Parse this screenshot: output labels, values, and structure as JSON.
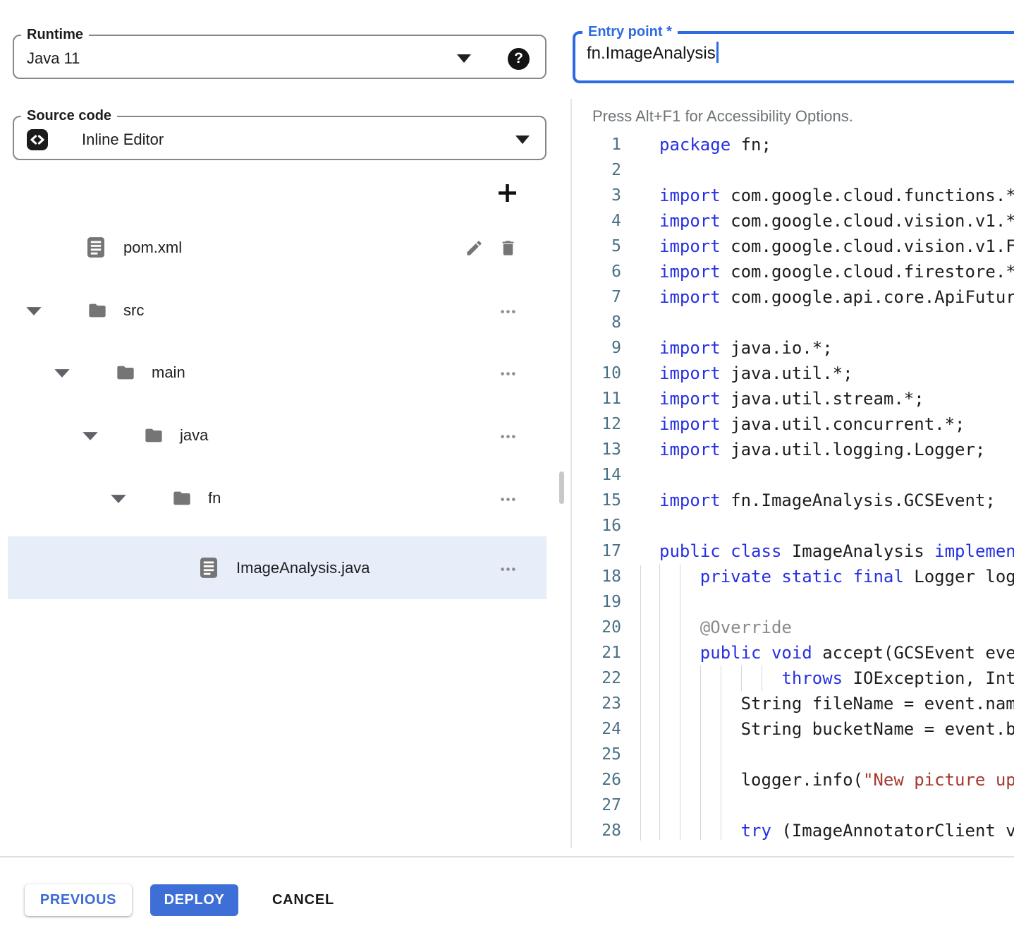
{
  "runtime_field": {
    "label": "Runtime",
    "value": "Java 11",
    "help_glyph": "?"
  },
  "source_field": {
    "label": "Source code",
    "value": "Inline Editor"
  },
  "entry_field": {
    "label": "Entry point *",
    "value": "fn.ImageAnalysis"
  },
  "file_tree": {
    "rows": [
      {
        "label": "pom.xml",
        "kind": "file",
        "level": 0,
        "caret": false,
        "selected": false,
        "actions": [
          "edit",
          "delete"
        ]
      },
      {
        "label": "src",
        "kind": "folder",
        "level": 0,
        "caret": true,
        "selected": false,
        "actions": [
          "more"
        ]
      },
      {
        "label": "main",
        "kind": "folder",
        "level": 1,
        "caret": true,
        "selected": false,
        "actions": [
          "more"
        ]
      },
      {
        "label": "java",
        "kind": "folder",
        "level": 2,
        "caret": true,
        "selected": false,
        "actions": [
          "more"
        ]
      },
      {
        "label": "fn",
        "kind": "folder",
        "level": 3,
        "caret": true,
        "selected": false,
        "actions": [
          "more"
        ]
      },
      {
        "label": "ImageAnalysis.java",
        "kind": "file",
        "level": 4,
        "caret": false,
        "selected": true,
        "actions": [
          "more"
        ]
      }
    ]
  },
  "editor": {
    "accessibility_hint": "Press Alt+F1 for Accessibility Options.",
    "lines": [
      {
        "n": 1,
        "ind": 0,
        "g": [],
        "t": [
          [
            "k",
            "package"
          ],
          [
            "p",
            " fn;"
          ]
        ]
      },
      {
        "n": 2,
        "ind": 0,
        "g": [],
        "t": []
      },
      {
        "n": 3,
        "ind": 0,
        "g": [],
        "t": [
          [
            "k",
            "import"
          ],
          [
            "p",
            " com.google.cloud.functions.*"
          ]
        ]
      },
      {
        "n": 4,
        "ind": 0,
        "g": [],
        "t": [
          [
            "k",
            "import"
          ],
          [
            "p",
            " com.google.cloud.vision.v1.*"
          ]
        ]
      },
      {
        "n": 5,
        "ind": 0,
        "g": [],
        "t": [
          [
            "k",
            "import"
          ],
          [
            "p",
            " com.google.cloud.vision.v1.F"
          ]
        ]
      },
      {
        "n": 6,
        "ind": 0,
        "g": [],
        "t": [
          [
            "k",
            "import"
          ],
          [
            "p",
            " com.google.cloud.firestore.*"
          ]
        ]
      },
      {
        "n": 7,
        "ind": 0,
        "g": [],
        "t": [
          [
            "k",
            "import"
          ],
          [
            "p",
            " com.google.api.core.ApiFutur"
          ]
        ]
      },
      {
        "n": 8,
        "ind": 0,
        "g": [],
        "t": []
      },
      {
        "n": 9,
        "ind": 0,
        "g": [],
        "t": [
          [
            "k",
            "import"
          ],
          [
            "p",
            " java.io.*;"
          ]
        ]
      },
      {
        "n": 10,
        "ind": 0,
        "g": [],
        "t": [
          [
            "k",
            "import"
          ],
          [
            "p",
            " java.util.*;"
          ]
        ]
      },
      {
        "n": 11,
        "ind": 0,
        "g": [],
        "t": [
          [
            "k",
            "import"
          ],
          [
            "p",
            " java.util.stream.*;"
          ]
        ]
      },
      {
        "n": 12,
        "ind": 0,
        "g": [],
        "t": [
          [
            "k",
            "import"
          ],
          [
            "p",
            " java.util.concurrent.*;"
          ]
        ]
      },
      {
        "n": 13,
        "ind": 0,
        "g": [],
        "t": [
          [
            "k",
            "import"
          ],
          [
            "p",
            " java.util.logging.Logger;"
          ]
        ]
      },
      {
        "n": 14,
        "ind": 0,
        "g": [],
        "t": []
      },
      {
        "n": 15,
        "ind": 0,
        "g": [],
        "t": [
          [
            "k",
            "import"
          ],
          [
            "p",
            " fn.ImageAnalysis.GCSEvent;"
          ]
        ]
      },
      {
        "n": 16,
        "ind": 0,
        "g": [],
        "t": []
      },
      {
        "n": 17,
        "ind": 0,
        "g": [],
        "t": [
          [
            "k",
            "public"
          ],
          [
            "p",
            " "
          ],
          [
            "k",
            "class"
          ],
          [
            "p",
            " ImageAnalysis "
          ],
          [
            "k",
            "implemen"
          ]
        ]
      },
      {
        "n": 18,
        "ind": 4,
        "g": [
          0,
          2
        ],
        "t": [
          [
            "k",
            "private"
          ],
          [
            "p",
            " "
          ],
          [
            "k",
            "static"
          ],
          [
            "p",
            " "
          ],
          [
            "k",
            "final"
          ],
          [
            "p",
            " Logger log"
          ]
        ]
      },
      {
        "n": 19,
        "ind": 0,
        "g": [
          0,
          2
        ],
        "t": []
      },
      {
        "n": 20,
        "ind": 4,
        "g": [
          0,
          2
        ],
        "t": [
          [
            "a",
            "@Override"
          ]
        ]
      },
      {
        "n": 21,
        "ind": 4,
        "g": [
          0,
          2
        ],
        "t": [
          [
            "k",
            "public"
          ],
          [
            "p",
            " "
          ],
          [
            "k",
            "void"
          ],
          [
            "p",
            " accept(GCSEvent eve"
          ]
        ]
      },
      {
        "n": 22,
        "ind": 12,
        "g": [
          0,
          2,
          4,
          6,
          8,
          10
        ],
        "t": [
          [
            "k",
            "throws"
          ],
          [
            "p",
            " IOException, Int"
          ]
        ]
      },
      {
        "n": 23,
        "ind": 8,
        "g": [
          0,
          2,
          4,
          6
        ],
        "t": [
          [
            "p",
            "String fileName = event.nam"
          ]
        ]
      },
      {
        "n": 24,
        "ind": 8,
        "g": [
          0,
          2,
          4,
          6
        ],
        "t": [
          [
            "p",
            "String bucketName = event.b"
          ]
        ]
      },
      {
        "n": 25,
        "ind": 0,
        "g": [
          0,
          2,
          4,
          6
        ],
        "t": []
      },
      {
        "n": 26,
        "ind": 8,
        "g": [
          0,
          2,
          4,
          6
        ],
        "t": [
          [
            "p",
            "logger.info("
          ],
          [
            "s",
            "\"New picture up"
          ]
        ]
      },
      {
        "n": 27,
        "ind": 0,
        "g": [
          0,
          2,
          4,
          6
        ],
        "t": []
      },
      {
        "n": 28,
        "ind": 8,
        "g": [
          0,
          2,
          4,
          6
        ],
        "t": [
          [
            "k",
            "try"
          ],
          [
            "p",
            " (ImageAnnotatorClient v"
          ]
        ]
      }
    ]
  },
  "footer": {
    "previous_label": "PREVIOUS",
    "deploy_label": "DEPLOY",
    "cancel_label": "CANCEL"
  },
  "colors": {
    "accent_blue": "#2d6be3",
    "deploy_blue": "#3e6fd6",
    "previous_text_blue": "#3d6bd5",
    "selected_row_bg": "#e7edf9",
    "keyword_blue": "#2630e2",
    "string_red": "#a6392f",
    "annotation_gray": "#8a8a8a",
    "line_number_teal": "#4a7086",
    "icon_gray": "#757575"
  }
}
